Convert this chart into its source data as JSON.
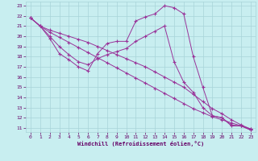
{
  "xlabel": "Windchill (Refroidissement éolien,°C)",
  "bg_color": "#c8eef0",
  "grid_color": "#a8d4d8",
  "line_color": "#993399",
  "tick_color": "#660066",
  "xlim": [
    -0.5,
    23.5
  ],
  "ylim": [
    10.6,
    23.4
  ],
  "xticks": [
    0,
    1,
    2,
    3,
    4,
    5,
    6,
    7,
    8,
    9,
    10,
    11,
    12,
    13,
    14,
    15,
    16,
    17,
    18,
    19,
    20,
    21,
    22,
    23
  ],
  "yticks": [
    11,
    12,
    13,
    14,
    15,
    16,
    17,
    18,
    19,
    20,
    21,
    22,
    23
  ],
  "line1_y": [
    21.8,
    21.0,
    19.8,
    18.3,
    17.7,
    17.0,
    16.6,
    18.3,
    19.3,
    19.5,
    19.5,
    21.5,
    21.9,
    22.2,
    23.0,
    22.8,
    22.2,
    18.0,
    15.0,
    12.2,
    12.0,
    11.2,
    11.2,
    10.8
  ],
  "line2_y": [
    21.8,
    21.0,
    20.0,
    19.0,
    18.2,
    17.5,
    17.2,
    17.8,
    18.2,
    18.5,
    18.8,
    19.5,
    20.0,
    20.5,
    21.0,
    17.5,
    15.5,
    14.5,
    13.0,
    12.2,
    12.0,
    11.3,
    11.2,
    10.8
  ],
  "line3_y": [
    21.8,
    21.0,
    20.4,
    19.9,
    19.4,
    18.9,
    18.4,
    17.9,
    17.4,
    16.9,
    16.4,
    15.9,
    15.4,
    14.9,
    14.4,
    13.9,
    13.4,
    12.9,
    12.5,
    12.1,
    11.8,
    11.5,
    11.2,
    10.9
  ],
  "line4_y": [
    21.8,
    21.0,
    20.6,
    20.3,
    20.0,
    19.7,
    19.4,
    19.0,
    18.6,
    18.2,
    17.8,
    17.4,
    17.0,
    16.5,
    16.0,
    15.5,
    15.0,
    14.3,
    13.6,
    12.9,
    12.4,
    11.8,
    11.3,
    10.9
  ]
}
